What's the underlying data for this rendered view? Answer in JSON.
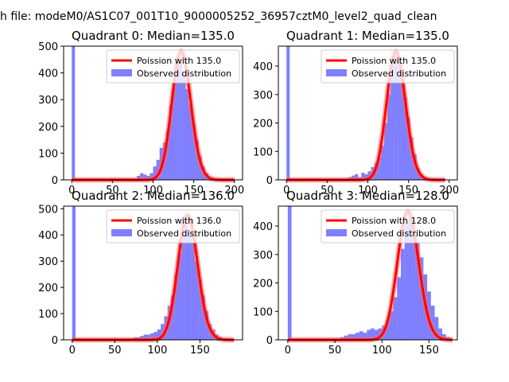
{
  "suptitle": "h file: modeM0/AS1C07_001T10_9000005252_36957cztM0_level2_quad_clean",
  "chart_data": [
    {
      "type": "bar",
      "title": "Quadrant 0: Median=135.0",
      "median": 135.0,
      "xlabel": "",
      "ylabel": "",
      "xlim": [
        -10,
        210
      ],
      "ylim": [
        0,
        500
      ],
      "xticks": [
        0,
        50,
        100,
        150,
        200
      ],
      "yticks": [
        0,
        100,
        200,
        300,
        400,
        500
      ],
      "bin_width": 4,
      "hist_x": [
        0,
        80,
        84,
        88,
        92,
        96,
        100,
        104,
        108,
        112,
        116,
        120,
        124,
        128,
        132,
        136,
        140,
        144,
        148,
        152,
        156,
        160,
        164,
        168,
        172
      ],
      "hist_y": [
        500,
        15,
        25,
        20,
        15,
        25,
        50,
        75,
        120,
        140,
        180,
        280,
        360,
        460,
        440,
        400,
        340,
        280,
        210,
        150,
        90,
        50,
        25,
        10,
        5
      ],
      "poisson_mean": 135.0,
      "poisson_peak": 480,
      "poisson_range": [
        0,
        200
      ],
      "legend": [
        "Poission with 135.0",
        "Observed distribution"
      ],
      "legend_loc": "upper right",
      "colors": {
        "line": "#ff0000",
        "bars": "#0000ff",
        "highlight": "#ff6666"
      }
    },
    {
      "type": "bar",
      "title": "Quadrant 1: Median=135.0",
      "median": 135.0,
      "xlabel": "",
      "ylabel": "",
      "xlim": [
        -10,
        210
      ],
      "ylim": [
        0,
        470
      ],
      "xticks": [
        0,
        50,
        100,
        150,
        200
      ],
      "yticks": [
        0,
        100,
        200,
        300,
        400
      ],
      "bin_width": 4,
      "hist_x": [
        0,
        76,
        80,
        84,
        88,
        92,
        96,
        100,
        104,
        108,
        112,
        116,
        120,
        124,
        128,
        132,
        136,
        140,
        144,
        148,
        152,
        156,
        160,
        164,
        168
      ],
      "hist_y": [
        470,
        10,
        15,
        20,
        10,
        25,
        20,
        30,
        45,
        60,
        80,
        120,
        200,
        300,
        410,
        440,
        420,
        380,
        290,
        220,
        150,
        90,
        40,
        20,
        10
      ],
      "poisson_mean": 135.0,
      "poisson_peak": 450,
      "poisson_range": [
        0,
        195
      ],
      "legend": [
        "Poission with 135.0",
        "Observed distribution"
      ],
      "legend_loc": "upper right",
      "colors": {
        "line": "#ff0000",
        "bars": "#0000ff",
        "highlight": "#ff6666"
      }
    },
    {
      "type": "bar",
      "title": "Quadrant 2: Median=136.0",
      "median": 136.0,
      "xlabel": "",
      "ylabel": "",
      "xlim": [
        -10,
        200
      ],
      "ylim": [
        0,
        510
      ],
      "xticks": [
        0,
        50,
        100,
        150
      ],
      "yticks": [
        0,
        100,
        200,
        300,
        400,
        500
      ],
      "bin_width": 4,
      "hist_x": [
        0,
        72,
        76,
        80,
        84,
        88,
        92,
        96,
        100,
        104,
        108,
        112,
        116,
        120,
        124,
        128,
        132,
        136,
        140,
        144,
        148,
        152,
        156,
        160,
        164,
        168,
        172,
        176
      ],
      "hist_y": [
        510,
        10,
        10,
        15,
        20,
        20,
        25,
        30,
        40,
        60,
        90,
        130,
        170,
        250,
        330,
        430,
        460,
        420,
        370,
        300,
        230,
        170,
        110,
        60,
        40,
        20,
        10,
        5
      ],
      "poisson_mean": 136.0,
      "poisson_peak": 475,
      "poisson_range": [
        0,
        190
      ],
      "legend": [
        "Poission with 136.0",
        "Observed distribution"
      ],
      "legend_loc": "upper right",
      "colors": {
        "line": "#ff0000",
        "bars": "#0000ff",
        "highlight": "#ff6666"
      }
    },
    {
      "type": "bar",
      "title": "Quadrant 3: Median=128.0",
      "median": 128.0,
      "xlabel": "",
      "ylabel": "",
      "xlim": [
        -10,
        180
      ],
      "ylim": [
        0,
        470
      ],
      "xticks": [
        0,
        50,
        100,
        150
      ],
      "yticks": [
        0,
        100,
        200,
        300,
        400
      ],
      "bin_width": 4,
      "hist_x": [
        0,
        56,
        60,
        64,
        68,
        72,
        76,
        80,
        84,
        88,
        92,
        96,
        100,
        104,
        108,
        112,
        116,
        120,
        124,
        128,
        132,
        136,
        140,
        144,
        148,
        152,
        156,
        160,
        164,
        168
      ],
      "hist_y": [
        470,
        10,
        15,
        20,
        20,
        25,
        30,
        25,
        35,
        40,
        35,
        40,
        50,
        70,
        100,
        150,
        220,
        320,
        410,
        430,
        390,
        340,
        290,
        230,
        170,
        120,
        80,
        40,
        20,
        10
      ],
      "poisson_mean": 128.0,
      "poisson_peak": 450,
      "poisson_range": [
        0,
        175
      ],
      "legend": [
        "Poission with 128.0",
        "Observed distribution"
      ],
      "legend_loc": "upper right",
      "colors": {
        "line": "#ff0000",
        "bars": "#0000ff",
        "highlight": "#ff6666"
      }
    }
  ]
}
